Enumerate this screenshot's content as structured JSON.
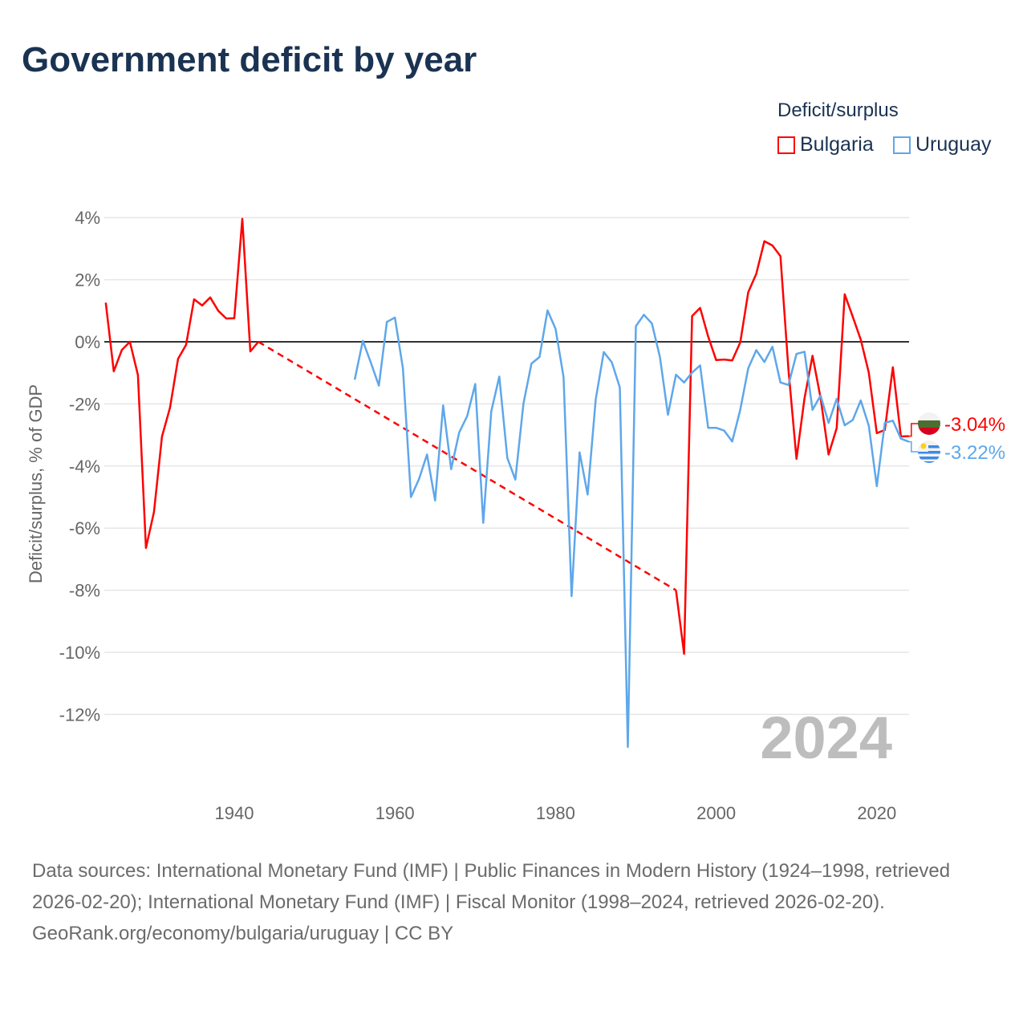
{
  "title": "Government deficit by year",
  "legend": {
    "title": "Deficit/surplus",
    "items": [
      {
        "label": "Bulgaria",
        "color": "#ff0000"
      },
      {
        "label": "Uruguay",
        "color": "#5ea7ea"
      }
    ]
  },
  "year_watermark": "2024",
  "footer": {
    "sources": "Data sources: International Monetary Fund (IMF) | Public Finances in Modern History (1924–1998, retrieved 2026-02-20); International Monetary Fund (IMF) | Fiscal Monitor (1998–2024, retrieved 2026-02-20).",
    "credit": "GeoRank.org/economy/bulgaria/uruguay | CC BY"
  },
  "chart_data": {
    "type": "line",
    "title": "Government deficit by year",
    "xlabel": "",
    "ylabel": "Deficit/surplus, % of GDP",
    "xlim": [
      1924,
      2024
    ],
    "ylim": [
      -14,
      4.5
    ],
    "x_ticks": [
      1940,
      1960,
      1980,
      2000,
      2020
    ],
    "y_ticks": [
      4,
      2,
      0,
      -2,
      -4,
      -6,
      -8,
      -10,
      -12
    ],
    "y_tick_labels": [
      "4%",
      "2%",
      "0%",
      "-2%",
      "-4%",
      "-6%",
      "-8%",
      "-10%",
      "-12%"
    ],
    "grid": true,
    "legend_position": "top-right",
    "series": [
      {
        "name": "Bulgaria",
        "color": "#ff0000",
        "end_label": "-3.04%",
        "x": [
          1924,
          1925,
          1926,
          1927,
          1928,
          1929,
          1930,
          1931,
          1932,
          1933,
          1934,
          1935,
          1936,
          1937,
          1938,
          1939,
          1940,
          1941,
          1942,
          1943,
          1995,
          1996,
          1997,
          1998,
          1999,
          2000,
          2001,
          2002,
          2003,
          2004,
          2005,
          2006,
          2007,
          2008,
          2009,
          2010,
          2011,
          2012,
          2013,
          2014,
          2015,
          2016,
          2017,
          2018,
          2019,
          2020,
          2021,
          2022,
          2023,
          2024
        ],
        "y": [
          1.26,
          -0.95,
          -0.26,
          0,
          -1.07,
          -6.64,
          -5.48,
          -3.05,
          -2.12,
          -0.55,
          -0.1,
          1.37,
          1.17,
          1.43,
          1.0,
          0.75,
          0.76,
          3.96,
          -0.31,
          0,
          -8.0,
          -10.05,
          0.83,
          1.09,
          0.17,
          -0.59,
          -0.57,
          -0.6,
          -0.02,
          1.6,
          2.19,
          3.24,
          3.1,
          2.76,
          -0.9,
          -3.77,
          -1.82,
          -0.45,
          -1.8,
          -3.63,
          -2.78,
          1.53,
          0.81,
          0.07,
          -0.99,
          -2.94,
          -2.84,
          -0.82,
          -3.05,
          -3.04
        ]
      },
      {
        "name": "Uruguay",
        "color": "#5ea7ea",
        "end_label": "-3.22%",
        "x": [
          1955,
          1956,
          1957,
          1958,
          1959,
          1960,
          1961,
          1962,
          1963,
          1964,
          1965,
          1966,
          1967,
          1968,
          1969,
          1970,
          1971,
          1972,
          1973,
          1974,
          1975,
          1976,
          1977,
          1978,
          1979,
          1980,
          1981,
          1982,
          1983,
          1984,
          1985,
          1986,
          1987,
          1988,
          1989,
          1990,
          1991,
          1992,
          1993,
          1994,
          1995,
          1996,
          1997,
          1998,
          1999,
          2000,
          2001,
          2002,
          2003,
          2004,
          2005,
          2006,
          2007,
          2008,
          2009,
          2010,
          2011,
          2012,
          2013,
          2014,
          2015,
          2016,
          2017,
          2018,
          2019,
          2020,
          2021,
          2022,
          2023,
          2024
        ],
        "y": [
          -1.22,
          0.03,
          -0.67,
          -1.41,
          0.64,
          0.78,
          -0.86,
          -5.0,
          -4.42,
          -3.63,
          -5.11,
          -2.05,
          -4.1,
          -2.92,
          -2.39,
          -1.36,
          -5.83,
          -2.24,
          -1.12,
          -3.74,
          -4.44,
          -1.99,
          -0.7,
          -0.49,
          1.01,
          0.42,
          -1.14,
          -8.19,
          -3.56,
          -4.92,
          -1.85,
          -0.33,
          -0.66,
          -1.47,
          -13.05,
          0.5,
          0.87,
          0.59,
          -0.49,
          -2.35,
          -1.06,
          -1.31,
          -0.99,
          -0.76,
          -2.77,
          -2.77,
          -2.86,
          -3.21,
          -2.19,
          -0.85,
          -0.27,
          -0.65,
          -0.16,
          -1.31,
          -1.39,
          -0.39,
          -0.32,
          -2.19,
          -1.73,
          -2.61,
          -1.84,
          -2.69,
          -2.52,
          -1.89,
          -2.7,
          -4.65,
          -2.61,
          -2.54,
          -3.12,
          -3.22
        ]
      }
    ]
  }
}
